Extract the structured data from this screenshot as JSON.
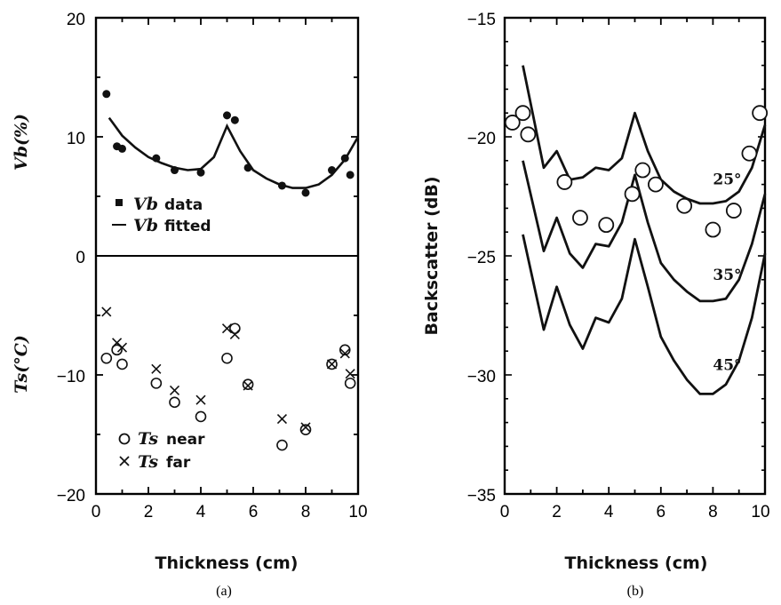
{
  "chart_data": [
    {
      "type": "scatter",
      "panel_label": "(a)",
      "xlabel": "Thickness (cm)",
      "xlim": [
        0,
        10
      ],
      "xticks": [
        "0",
        "2",
        "4",
        "6",
        "8",
        "10"
      ],
      "ylim": [
        -20,
        20
      ],
      "yticks": [
        "20",
        "10",
        "0",
        "−10",
        "−20"
      ],
      "ylabel_upper": "Vb(%)",
      "ylabel_lower": "Ts(°C)",
      "zero_line": true,
      "legend_upper": [
        {
          "symbol": "Vb",
          "text": "data",
          "marker": "square"
        },
        {
          "symbol": "Vb",
          "text": "fitted",
          "marker": "line"
        }
      ],
      "legend_lower": [
        {
          "symbol": "Ts",
          "text": "near",
          "marker": "circle"
        },
        {
          "symbol": "Ts",
          "text": "far",
          "marker": "cross"
        }
      ],
      "series": [
        {
          "name": "Vb data",
          "marker": "filled-circle",
          "x": [
            0.4,
            0.8,
            1.0,
            2.3,
            3.0,
            4.0,
            5.0,
            5.3,
            5.8,
            7.1,
            8.0,
            9.0,
            9.5,
            9.7
          ],
          "y": [
            13.6,
            9.2,
            9.0,
            8.2,
            7.2,
            7.0,
            11.8,
            11.4,
            7.4,
            5.9,
            5.3,
            7.2,
            8.2,
            6.8
          ]
        },
        {
          "name": "Vb fitted",
          "marker": "line",
          "x": [
            0.5,
            1.0,
            1.5,
            2.0,
            2.5,
            3.0,
            3.5,
            4.0,
            4.5,
            5.0,
            5.5,
            6.0,
            6.5,
            7.0,
            7.5,
            8.0,
            8.5,
            9.0,
            9.5,
            10.0
          ],
          "y": [
            11.6,
            10.1,
            9.1,
            8.3,
            7.8,
            7.4,
            7.2,
            7.3,
            8.3,
            10.9,
            8.8,
            7.2,
            6.5,
            6.0,
            5.7,
            5.7,
            6.0,
            6.8,
            8.1,
            10.0
          ]
        },
        {
          "name": "Ts near",
          "marker": "circle",
          "x": [
            0.4,
            0.8,
            1.0,
            2.3,
            3.0,
            4.0,
            5.0,
            5.3,
            5.8,
            7.1,
            8.0,
            9.0,
            9.5,
            9.7
          ],
          "y": [
            -8.6,
            -7.9,
            -9.1,
            -10.7,
            -12.3,
            -13.5,
            -8.6,
            -6.1,
            -10.8,
            -15.9,
            -14.6,
            -9.1,
            -7.9,
            -10.7
          ]
        },
        {
          "name": "Ts far",
          "marker": "cross",
          "x": [
            0.4,
            0.8,
            1.0,
            2.3,
            3.0,
            4.0,
            5.0,
            5.3,
            5.8,
            7.1,
            8.0,
            9.0,
            9.5,
            9.7
          ],
          "y": [
            -4.7,
            -7.3,
            -7.7,
            -9.5,
            -11.3,
            -12.1,
            -6.1,
            -6.6,
            -10.9,
            -13.7,
            -14.4,
            -9.1,
            -8.2,
            -9.9
          ]
        }
      ]
    },
    {
      "type": "line",
      "panel_label": "(b)",
      "xlabel": "Thickness (cm)",
      "ylabel": "Backscatter (dB)",
      "xlim": [
        0,
        10
      ],
      "xticks": [
        "0",
        "2",
        "4",
        "6",
        "8",
        "10"
      ],
      "ylim": [
        -35,
        -15
      ],
      "yticks": [
        "−15",
        "−20",
        "−25",
        "−30",
        "−35"
      ],
      "series": [
        {
          "name": "25°",
          "marker": "line",
          "x": [
            0.7,
            1.5,
            2.0,
            2.5,
            3.0,
            3.5,
            4.0,
            4.5,
            5.0,
            5.5,
            6.0,
            6.5,
            7.0,
            7.5,
            8.0,
            8.5,
            9.0,
            9.5,
            10.0
          ],
          "y": [
            -17.0,
            -21.3,
            -20.6,
            -21.8,
            -21.7,
            -21.3,
            -21.4,
            -20.9,
            -19.0,
            -20.6,
            -21.8,
            -22.3,
            -22.6,
            -22.8,
            -22.8,
            -22.7,
            -22.3,
            -21.3,
            -19.5
          ]
        },
        {
          "name": "35°",
          "marker": "line",
          "x": [
            0.7,
            1.5,
            2.0,
            2.5,
            3.0,
            3.5,
            4.0,
            4.5,
            5.0,
            5.5,
            6.0,
            6.5,
            7.0,
            7.5,
            8.0,
            8.5,
            9.0,
            9.5,
            10.0
          ],
          "y": [
            -21.0,
            -24.8,
            -23.4,
            -24.9,
            -25.5,
            -24.5,
            -24.6,
            -23.6,
            -21.6,
            -23.6,
            -25.3,
            -26.0,
            -26.5,
            -26.9,
            -26.9,
            -26.8,
            -26.0,
            -24.5,
            -22.4
          ]
        },
        {
          "name": "45°",
          "marker": "line",
          "x": [
            0.7,
            1.5,
            2.0,
            2.5,
            3.0,
            3.5,
            4.0,
            4.5,
            5.0,
            5.5,
            6.0,
            6.5,
            7.0,
            7.5,
            8.0,
            8.5,
            9.0,
            9.5,
            10.0
          ],
          "y": [
            -24.1,
            -28.1,
            -26.3,
            -27.9,
            -28.9,
            -27.6,
            -27.8,
            -26.8,
            -24.3,
            -26.3,
            -28.4,
            -29.4,
            -30.2,
            -30.8,
            -30.8,
            -30.4,
            -29.4,
            -27.6,
            -24.9
          ]
        },
        {
          "name": "measured",
          "marker": "circle",
          "x": [
            0.3,
            0.7,
            0.9,
            2.3,
            2.9,
            3.9,
            4.9,
            5.3,
            5.8,
            6.9,
            8.0,
            8.8,
            9.4,
            9.8
          ],
          "y": [
            -19.4,
            -19.0,
            -19.9,
            -21.9,
            -23.4,
            -23.7,
            -22.4,
            -21.4,
            -22.0,
            -22.9,
            -23.9,
            -23.1,
            -20.7,
            -19.0
          ]
        }
      ],
      "curve_labels": [
        {
          "text": "25°",
          "x": 8.0,
          "y": -22.0
        },
        {
          "text": "35°",
          "x": 8.0,
          "y": -26.0
        },
        {
          "text": "45°",
          "x": 8.0,
          "y": -29.8
        }
      ]
    }
  ]
}
